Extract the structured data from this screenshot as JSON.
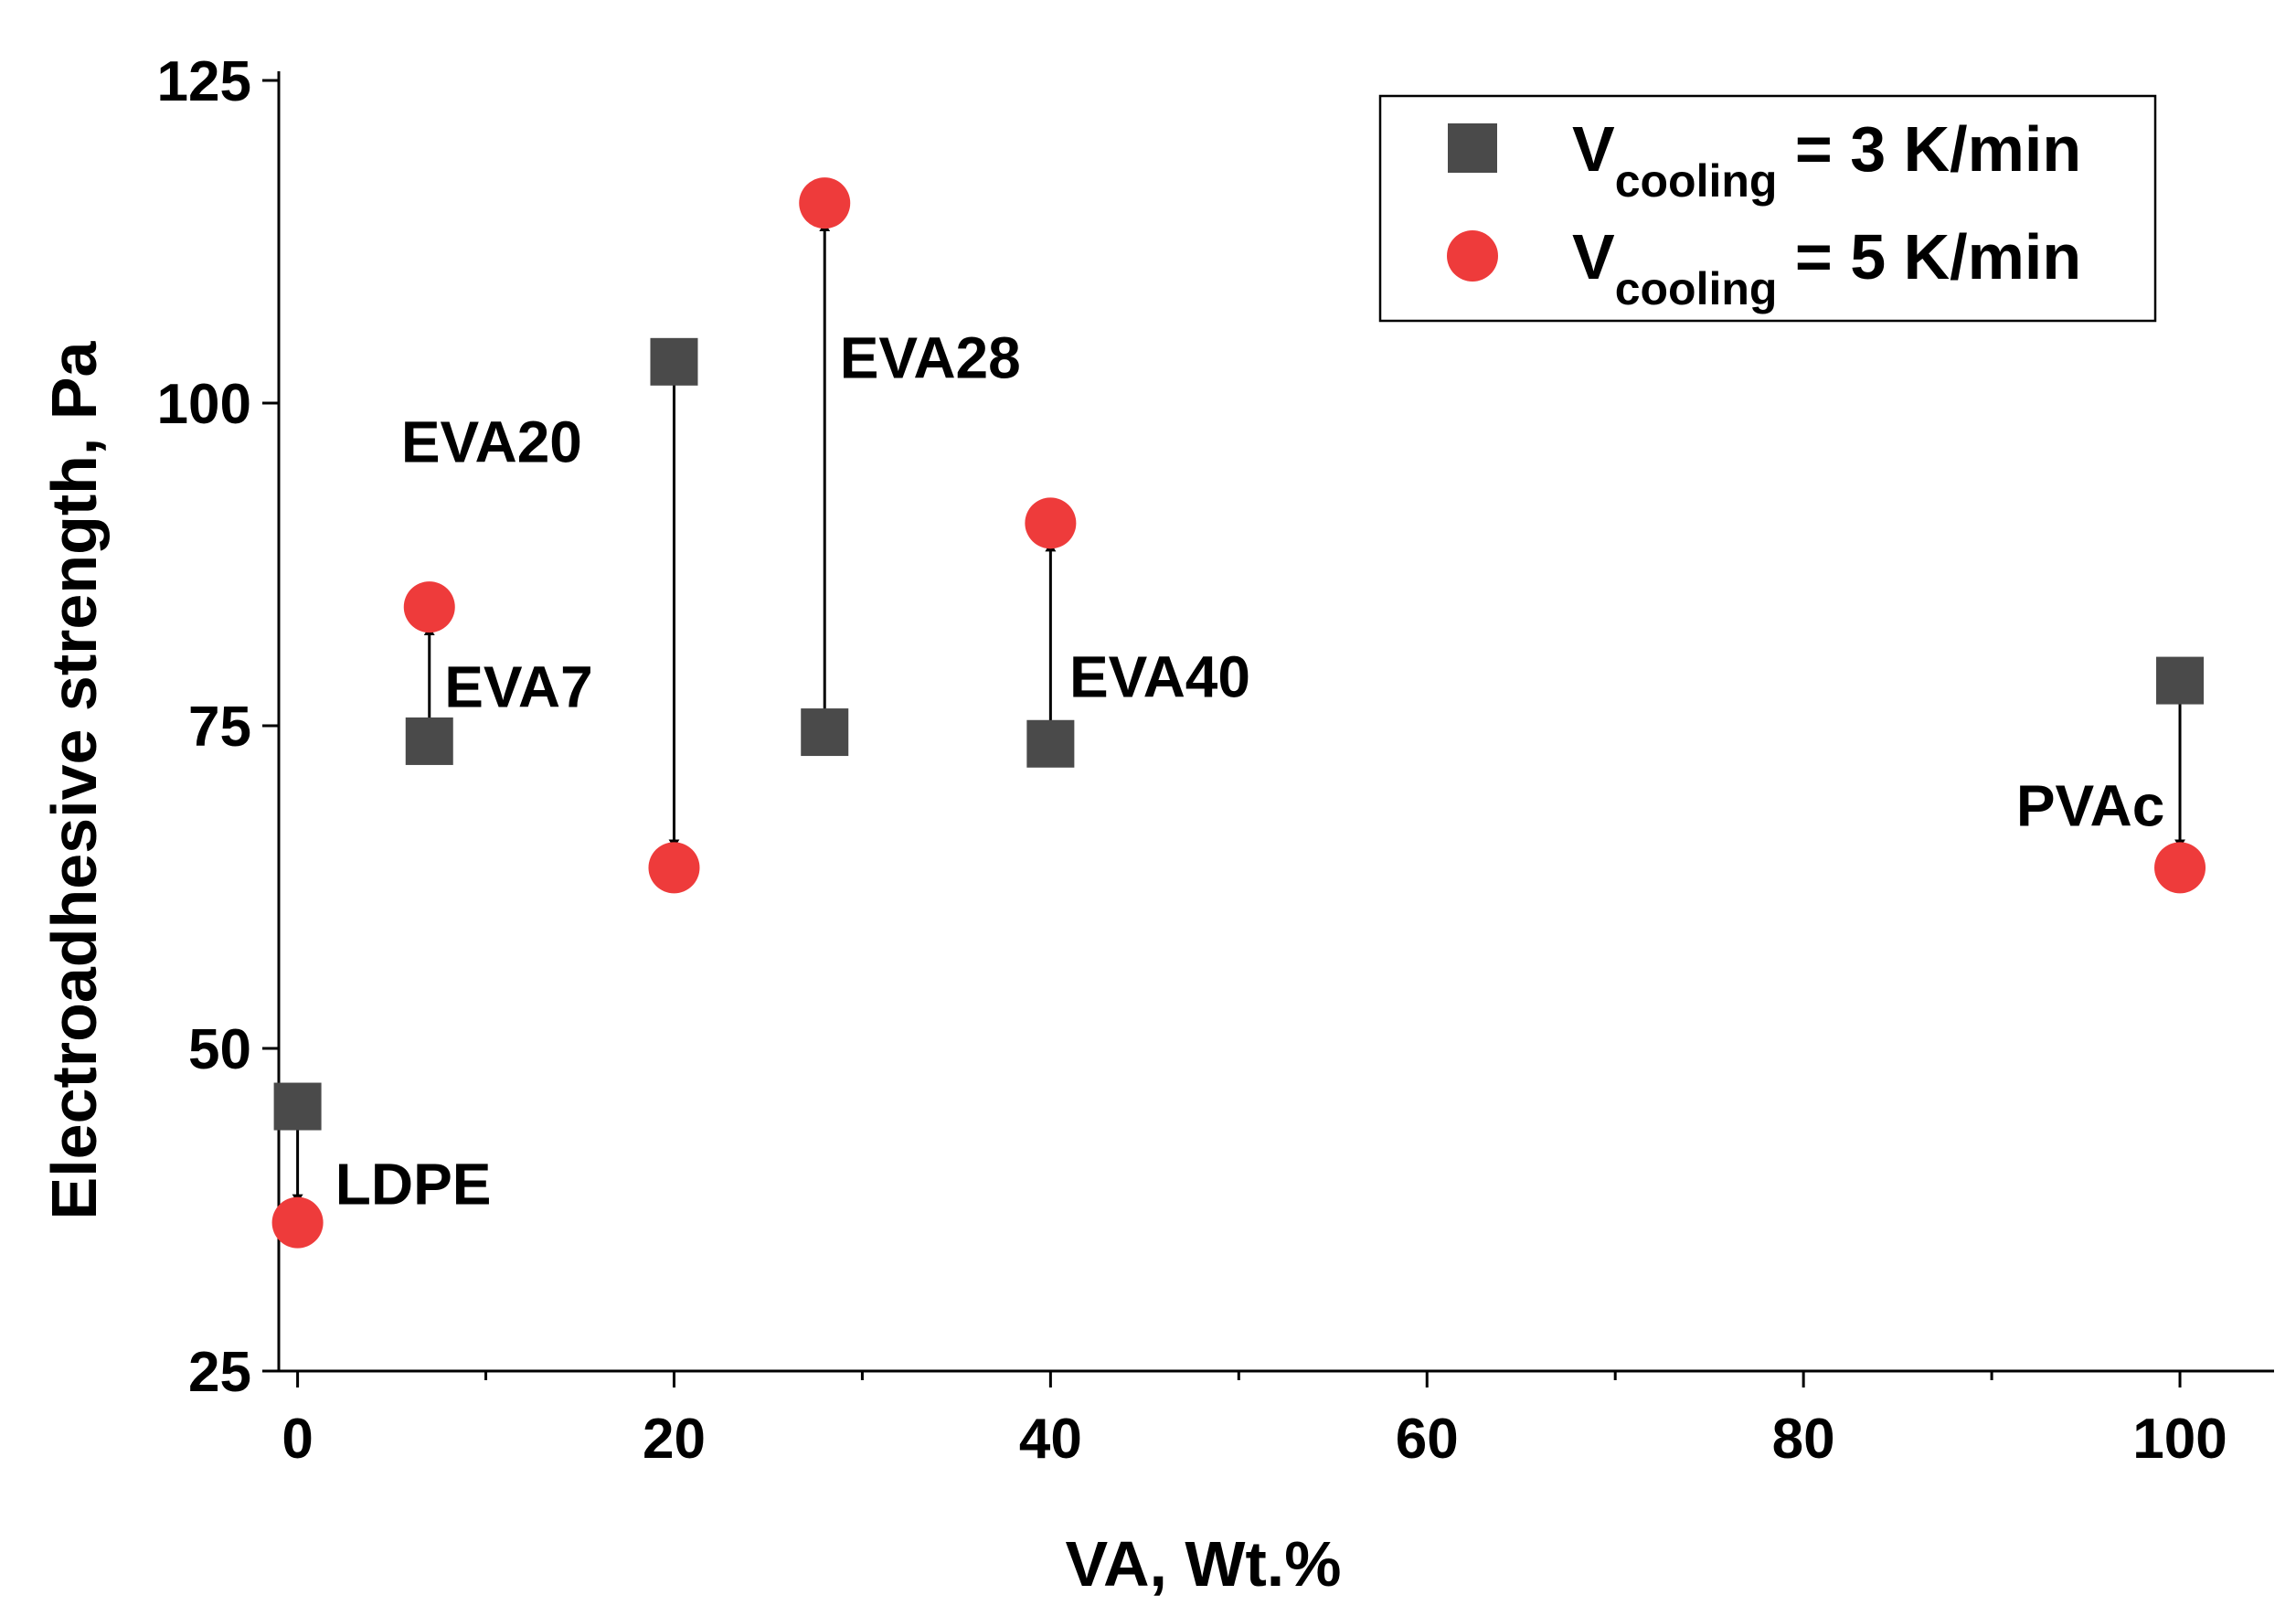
{
  "chart_data": {
    "type": "scatter",
    "xlabel": "VA, Wt.%",
    "ylabel": "Electroadhesive strength, Pa",
    "xlim": [
      -1,
      105
    ],
    "ylim": [
      25,
      125
    ],
    "x_ticks": [
      0,
      20,
      40,
      60,
      80,
      100
    ],
    "x_tick_labels": [
      "0",
      "20",
      "40",
      "60",
      "80",
      "100"
    ],
    "x_minor_ticks": [
      10,
      30,
      50,
      70,
      90
    ],
    "y_ticks": [
      25,
      50,
      75,
      100,
      125
    ],
    "y_tick_labels": [
      "25",
      "50",
      "75",
      "100",
      "125"
    ],
    "series": [
      {
        "name": "V_cooling = 3 K/min",
        "legend_main": "V",
        "legend_sub": "cooling",
        "legend_rest": " = 3 K/min",
        "marker": "square",
        "color": "#4a4a4a",
        "points": [
          {
            "x": 0,
            "y": 45.5
          },
          {
            "x": 7,
            "y": 73.8
          },
          {
            "x": 20,
            "y": 103.2
          },
          {
            "x": 28,
            "y": 74.5
          },
          {
            "x": 40,
            "y": 73.6
          },
          {
            "x": 100,
            "y": 78.5
          }
        ]
      },
      {
        "name": "V_cooling = 5 K/min",
        "legend_main": "V",
        "legend_sub": "cooling",
        "legend_rest": " = 5 K/min",
        "marker": "circle",
        "color": "#ee3b3b",
        "points": [
          {
            "x": 0,
            "y": 36.5
          },
          {
            "x": 7,
            "y": 84.2
          },
          {
            "x": 20,
            "y": 64.0
          },
          {
            "x": 28,
            "y": 115.5
          },
          {
            "x": 40,
            "y": 90.7
          },
          {
            "x": 100,
            "y": 64.0
          }
        ]
      }
    ],
    "annotations": [
      {
        "text": "LDPE",
        "x": 2,
        "y": 39.5,
        "anchor": "start"
      },
      {
        "text": "EVA7",
        "x": 7.8,
        "y": 78,
        "anchor": "start"
      },
      {
        "text": "EVA20",
        "x": 5.5,
        "y": 97,
        "anchor": "start"
      },
      {
        "text": "EVA28",
        "x": 28.8,
        "y": 103.5,
        "anchor": "start"
      },
      {
        "text": "EVA40",
        "x": 41,
        "y": 78.8,
        "anchor": "start"
      },
      {
        "text": "PVAc",
        "x": 91.3,
        "y": 68.8,
        "anchor": "start"
      }
    ],
    "arrows": [
      {
        "x": 0,
        "from": 45.5,
        "to": 36.5
      },
      {
        "x": 7,
        "from": 73.8,
        "to": 84.2
      },
      {
        "x": 20,
        "from": 103.2,
        "to": 64.0
      },
      {
        "x": 28,
        "from": 74.5,
        "to": 115.5
      },
      {
        "x": 40,
        "from": 73.6,
        "to": 90.7
      },
      {
        "x": 100,
        "from": 78.5,
        "to": 64.0
      }
    ],
    "legend_position": "top-right",
    "grid": false
  }
}
